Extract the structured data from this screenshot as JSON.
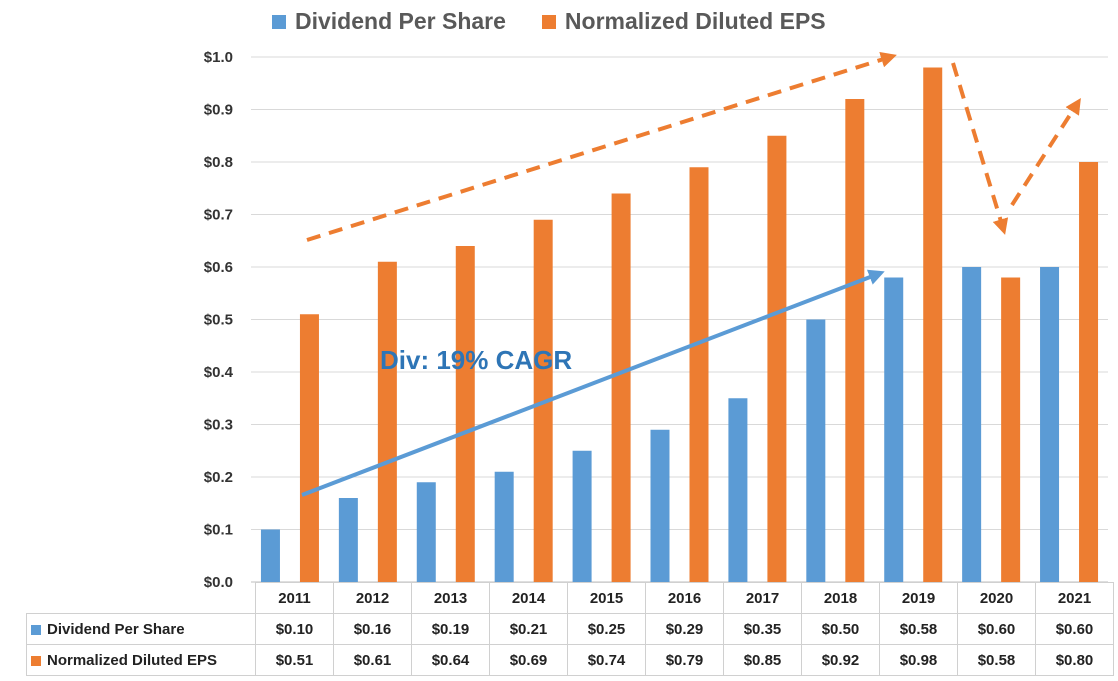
{
  "legend": {
    "dividend_label": "Dividend Per Share",
    "eps_label": "Normalized Diluted EPS"
  },
  "colors": {
    "dividend": "#5b9bd5",
    "eps": "#ed7d31",
    "annotation_text": "#2e75b6",
    "grid": "#d9d9d9"
  },
  "annotation": {
    "text": "Div: 19% CAGR"
  },
  "chart_data": {
    "type": "bar",
    "categories": [
      "2011",
      "2012",
      "2013",
      "2014",
      "2015",
      "2016",
      "2017",
      "2018",
      "2019",
      "2020",
      "2021"
    ],
    "series": [
      {
        "name": "Dividend Per Share",
        "values": [
          0.1,
          0.16,
          0.19,
          0.21,
          0.25,
          0.29,
          0.35,
          0.5,
          0.58,
          0.6,
          0.6
        ]
      },
      {
        "name": "Normalized Diluted EPS",
        "values": [
          0.51,
          0.61,
          0.64,
          0.69,
          0.74,
          0.79,
          0.85,
          0.92,
          0.98,
          0.58,
          0.8
        ]
      }
    ],
    "ylim": [
      0,
      1.0
    ],
    "yticks": [
      "$0.0",
      "$0.1",
      "$0.2",
      "$0.3",
      "$0.4",
      "$0.5",
      "$0.6",
      "$0.7",
      "$0.8",
      "$0.9",
      "$1.0"
    ],
    "grid": true,
    "legend_position": "top"
  },
  "table": {
    "years": [
      "2011",
      "2012",
      "2013",
      "2014",
      "2015",
      "2016",
      "2017",
      "2018",
      "2019",
      "2020",
      "2021"
    ],
    "dividend_row": [
      "$0.10",
      "$0.16",
      "$0.19",
      "$0.21",
      "$0.25",
      "$0.29",
      "$0.35",
      "$0.50",
      "$0.58",
      "$0.60",
      "$0.60"
    ],
    "eps_row": [
      "$0.51",
      "$0.61",
      "$0.64",
      "$0.69",
      "$0.74",
      "$0.79",
      "$0.85",
      "$0.92",
      "$0.98",
      "$0.58",
      "$0.80"
    ]
  }
}
